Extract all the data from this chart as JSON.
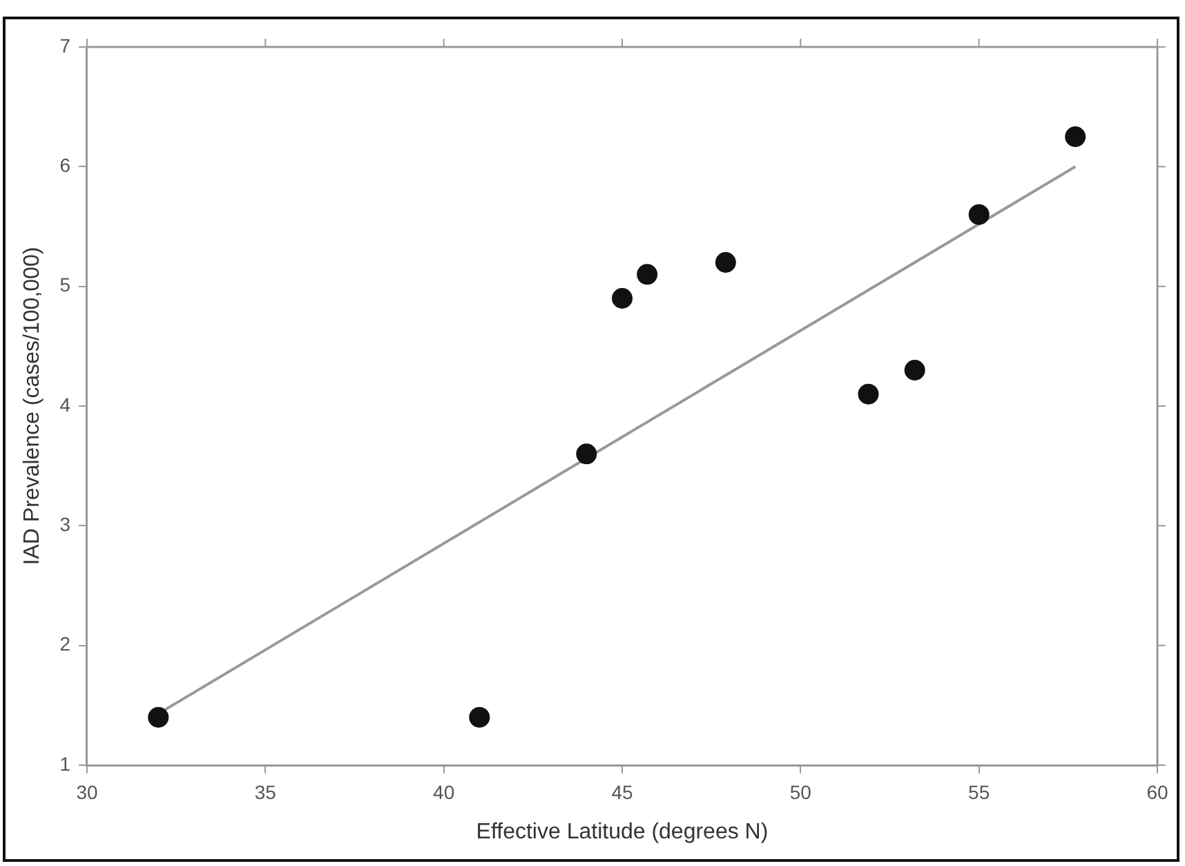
{
  "chart_data": {
    "type": "scatter",
    "xlabel": "Effective Latitude (degrees N)",
    "ylabel": "IAD Prevalence (cases/100,000)",
    "xlim": [
      30,
      60
    ],
    "xticks": [
      30,
      35,
      40,
      45,
      50,
      55,
      60
    ],
    "ylim": [
      1,
      7
    ],
    "yticks": [
      1,
      2,
      3,
      4,
      5,
      6,
      7
    ],
    "grid": false,
    "legend": false,
    "marker": "circle",
    "series": [
      {
        "type": "scatter",
        "color": "#111111",
        "x": [
          32,
          41,
          44,
          45,
          45.7,
          47.9,
          51.9,
          53.2,
          55,
          57.7
        ],
        "values": [
          1.4,
          1.4,
          3.6,
          4.9,
          5.1,
          5.2,
          4.1,
          4.3,
          5.6,
          6.25
        ]
      },
      {
        "type": "line",
        "color": "#999999",
        "x": [
          32,
          57.7
        ],
        "values": [
          1.43,
          6.0
        ],
        "line_style": "solid",
        "marker": "none"
      }
    ]
  }
}
